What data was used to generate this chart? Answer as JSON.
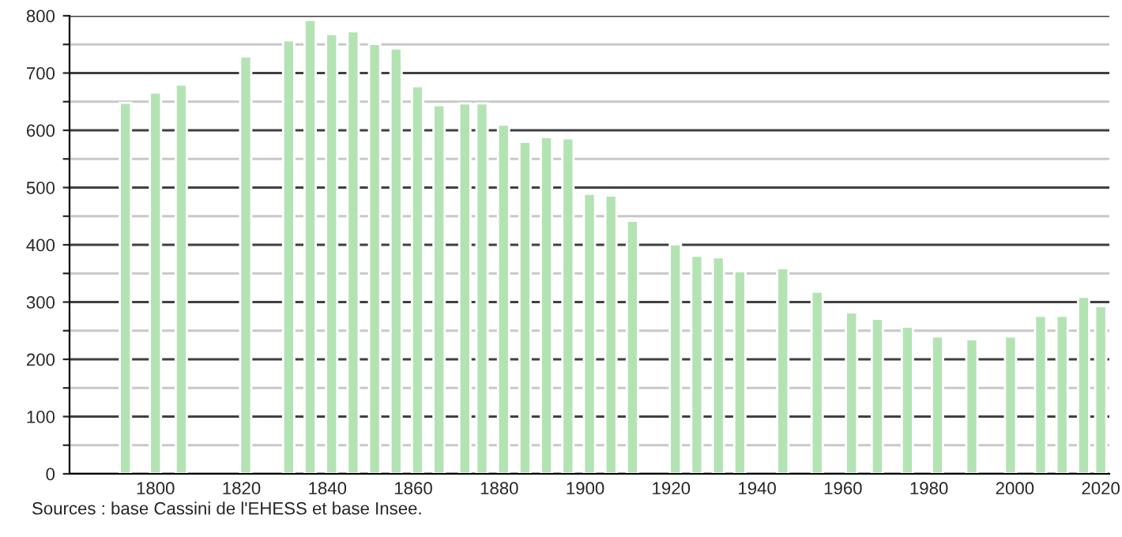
{
  "chart_data": {
    "type": "bar",
    "x": [
      1793,
      1800,
      1806,
      1821,
      1831,
      1836,
      1841,
      1846,
      1851,
      1856,
      1861,
      1866,
      1872,
      1876,
      1881,
      1886,
      1891,
      1896,
      1901,
      1906,
      1911,
      1921,
      1926,
      1931,
      1936,
      1946,
      1954,
      1962,
      1968,
      1975,
      1982,
      1990,
      1999,
      2006,
      2011,
      2016,
      2020
    ],
    "values": [
      648,
      666,
      680,
      729,
      757,
      793,
      768,
      773,
      751,
      743,
      677,
      644,
      647,
      647,
      610,
      580,
      588,
      586,
      489,
      486,
      442,
      401,
      381,
      378,
      354,
      359,
      318,
      282,
      271,
      257,
      240,
      235,
      240,
      276,
      276,
      309,
      293
    ],
    "color": "#b3e3b3",
    "xlim": [
      1780,
      2022
    ],
    "xticks": [
      1800,
      1820,
      1840,
      1860,
      1880,
      1900,
      1920,
      1940,
      1960,
      1980,
      2000,
      2020
    ],
    "ylim": [
      0,
      800
    ],
    "yticks": [
      0,
      {
        "value": 50,
        "label": null
      },
      100,
      {
        "value": 150,
        "label": null
      },
      200,
      {
        "value": 250,
        "label": null
      },
      300,
      {
        "value": 350,
        "label": null
      },
      400,
      {
        "value": 450,
        "label": null
      },
      500,
      {
        "value": 550,
        "label": null
      },
      600,
      {
        "value": 650,
        "label": null
      },
      700,
      {
        "value": 750,
        "label": null
      },
      800
    ],
    "grid": "y",
    "annotations": [
      "Sources : base Cassini de l'EHESS et base Insee."
    ]
  }
}
